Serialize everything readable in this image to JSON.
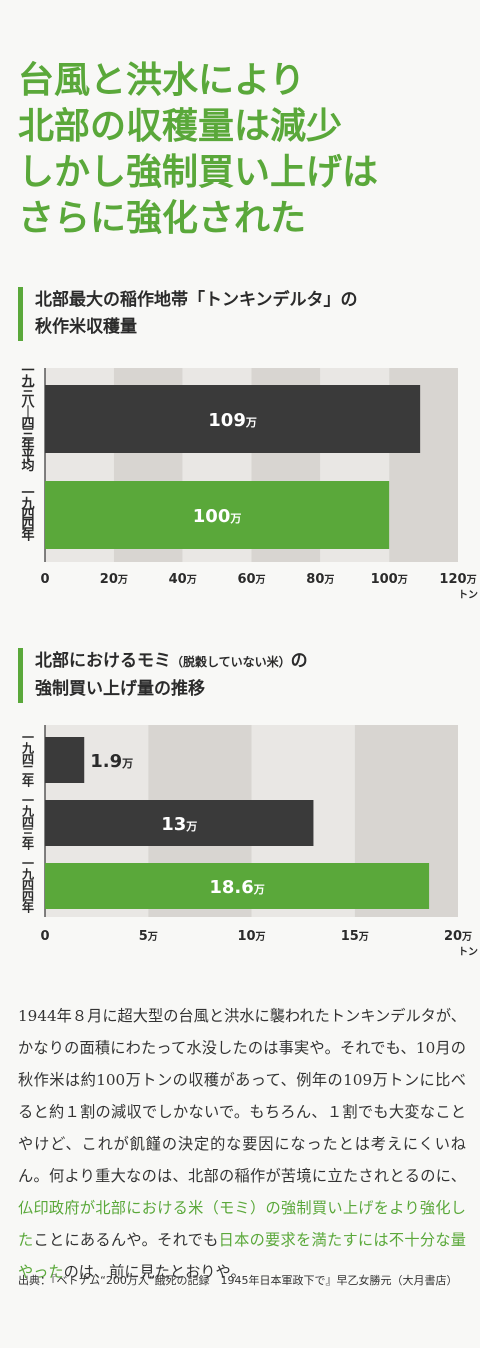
{
  "headline": {
    "lines": [
      "台風と洪水により",
      "北部の収穫量は減少",
      "しかし強制買い上げは",
      "さらに強化された"
    ]
  },
  "chart1_title": {
    "line1": "北部最大の稲作地帯「トンキンデルタ」の",
    "line2": "秋作米収穫量"
  },
  "chart2_title": {
    "line1_a": "北部におけるモミ",
    "line1_b": "（脱穀していない米）",
    "line1_c": "の",
    "line2": "強制買い上げ量の推移"
  },
  "colors": {
    "accent_green": "#5aa83a",
    "bar_dark": "#3a3a3a",
    "band_light": "#e9e7e4",
    "band_dark": "#d8d5d1"
  },
  "chart_data": [
    {
      "type": "bar",
      "orientation": "horizontal",
      "categories": [
        "一九三八〜四三年平均",
        "一九四四年"
      ],
      "values": [
        109,
        100
      ],
      "value_labels": [
        "109万",
        "100万"
      ],
      "bar_colors": [
        "#3a3a3a",
        "#5aa83a"
      ],
      "xlim": [
        0,
        120
      ],
      "xticks": [
        "0",
        "20万",
        "40万",
        "60万",
        "80万",
        "100万",
        "120万"
      ],
      "unit": "トン",
      "title": "北部最大の稲作地帯「トンキンデルタ」の秋作米収穫量"
    },
    {
      "type": "bar",
      "orientation": "horizontal",
      "categories": [
        "一九四二年",
        "一九四三年",
        "一九四四年"
      ],
      "values": [
        1.9,
        13,
        18.6
      ],
      "value_labels": [
        "1.9万",
        "13万",
        "18.6万"
      ],
      "bar_colors": [
        "#3a3a3a",
        "#3a3a3a",
        "#5aa83a"
      ],
      "xlim": [
        0,
        20
      ],
      "xticks": [
        "0",
        "5万",
        "10万",
        "15万",
        "20万"
      ],
      "unit": "トン",
      "title": "北部におけるモミ（脱穀していない米）の強制買い上げ量の推移"
    }
  ],
  "body": {
    "p1": "1944年８月に超大型の台風と洪水に襲われたトンキンデルタが、かなりの面積にわたって水没したのは事実や。それでも、10月の秋作米は約100万トンの収穫があって、例年の109万トンに比べると約１割の減収でしかないで。もちろん、１割でも大変なことやけど、これが飢饉の決定的な要因になったとは考えにくいねん。何より重大なのは、北部の稲作が苦境に立たされとるのに、",
    "hl1": "仏印政府が北部における米（モミ）の強制買い上げをより強化した",
    "p2": "ことにあるんや。それでも",
    "hl2": "日本の要求を満たすには不十分な量やった",
    "p3": "のは、前に見たとおりや。"
  },
  "source": "出典：『ベトナム“200万人”餓死の記録　1945年日本軍政下で』早乙女勝元（大月書店）"
}
